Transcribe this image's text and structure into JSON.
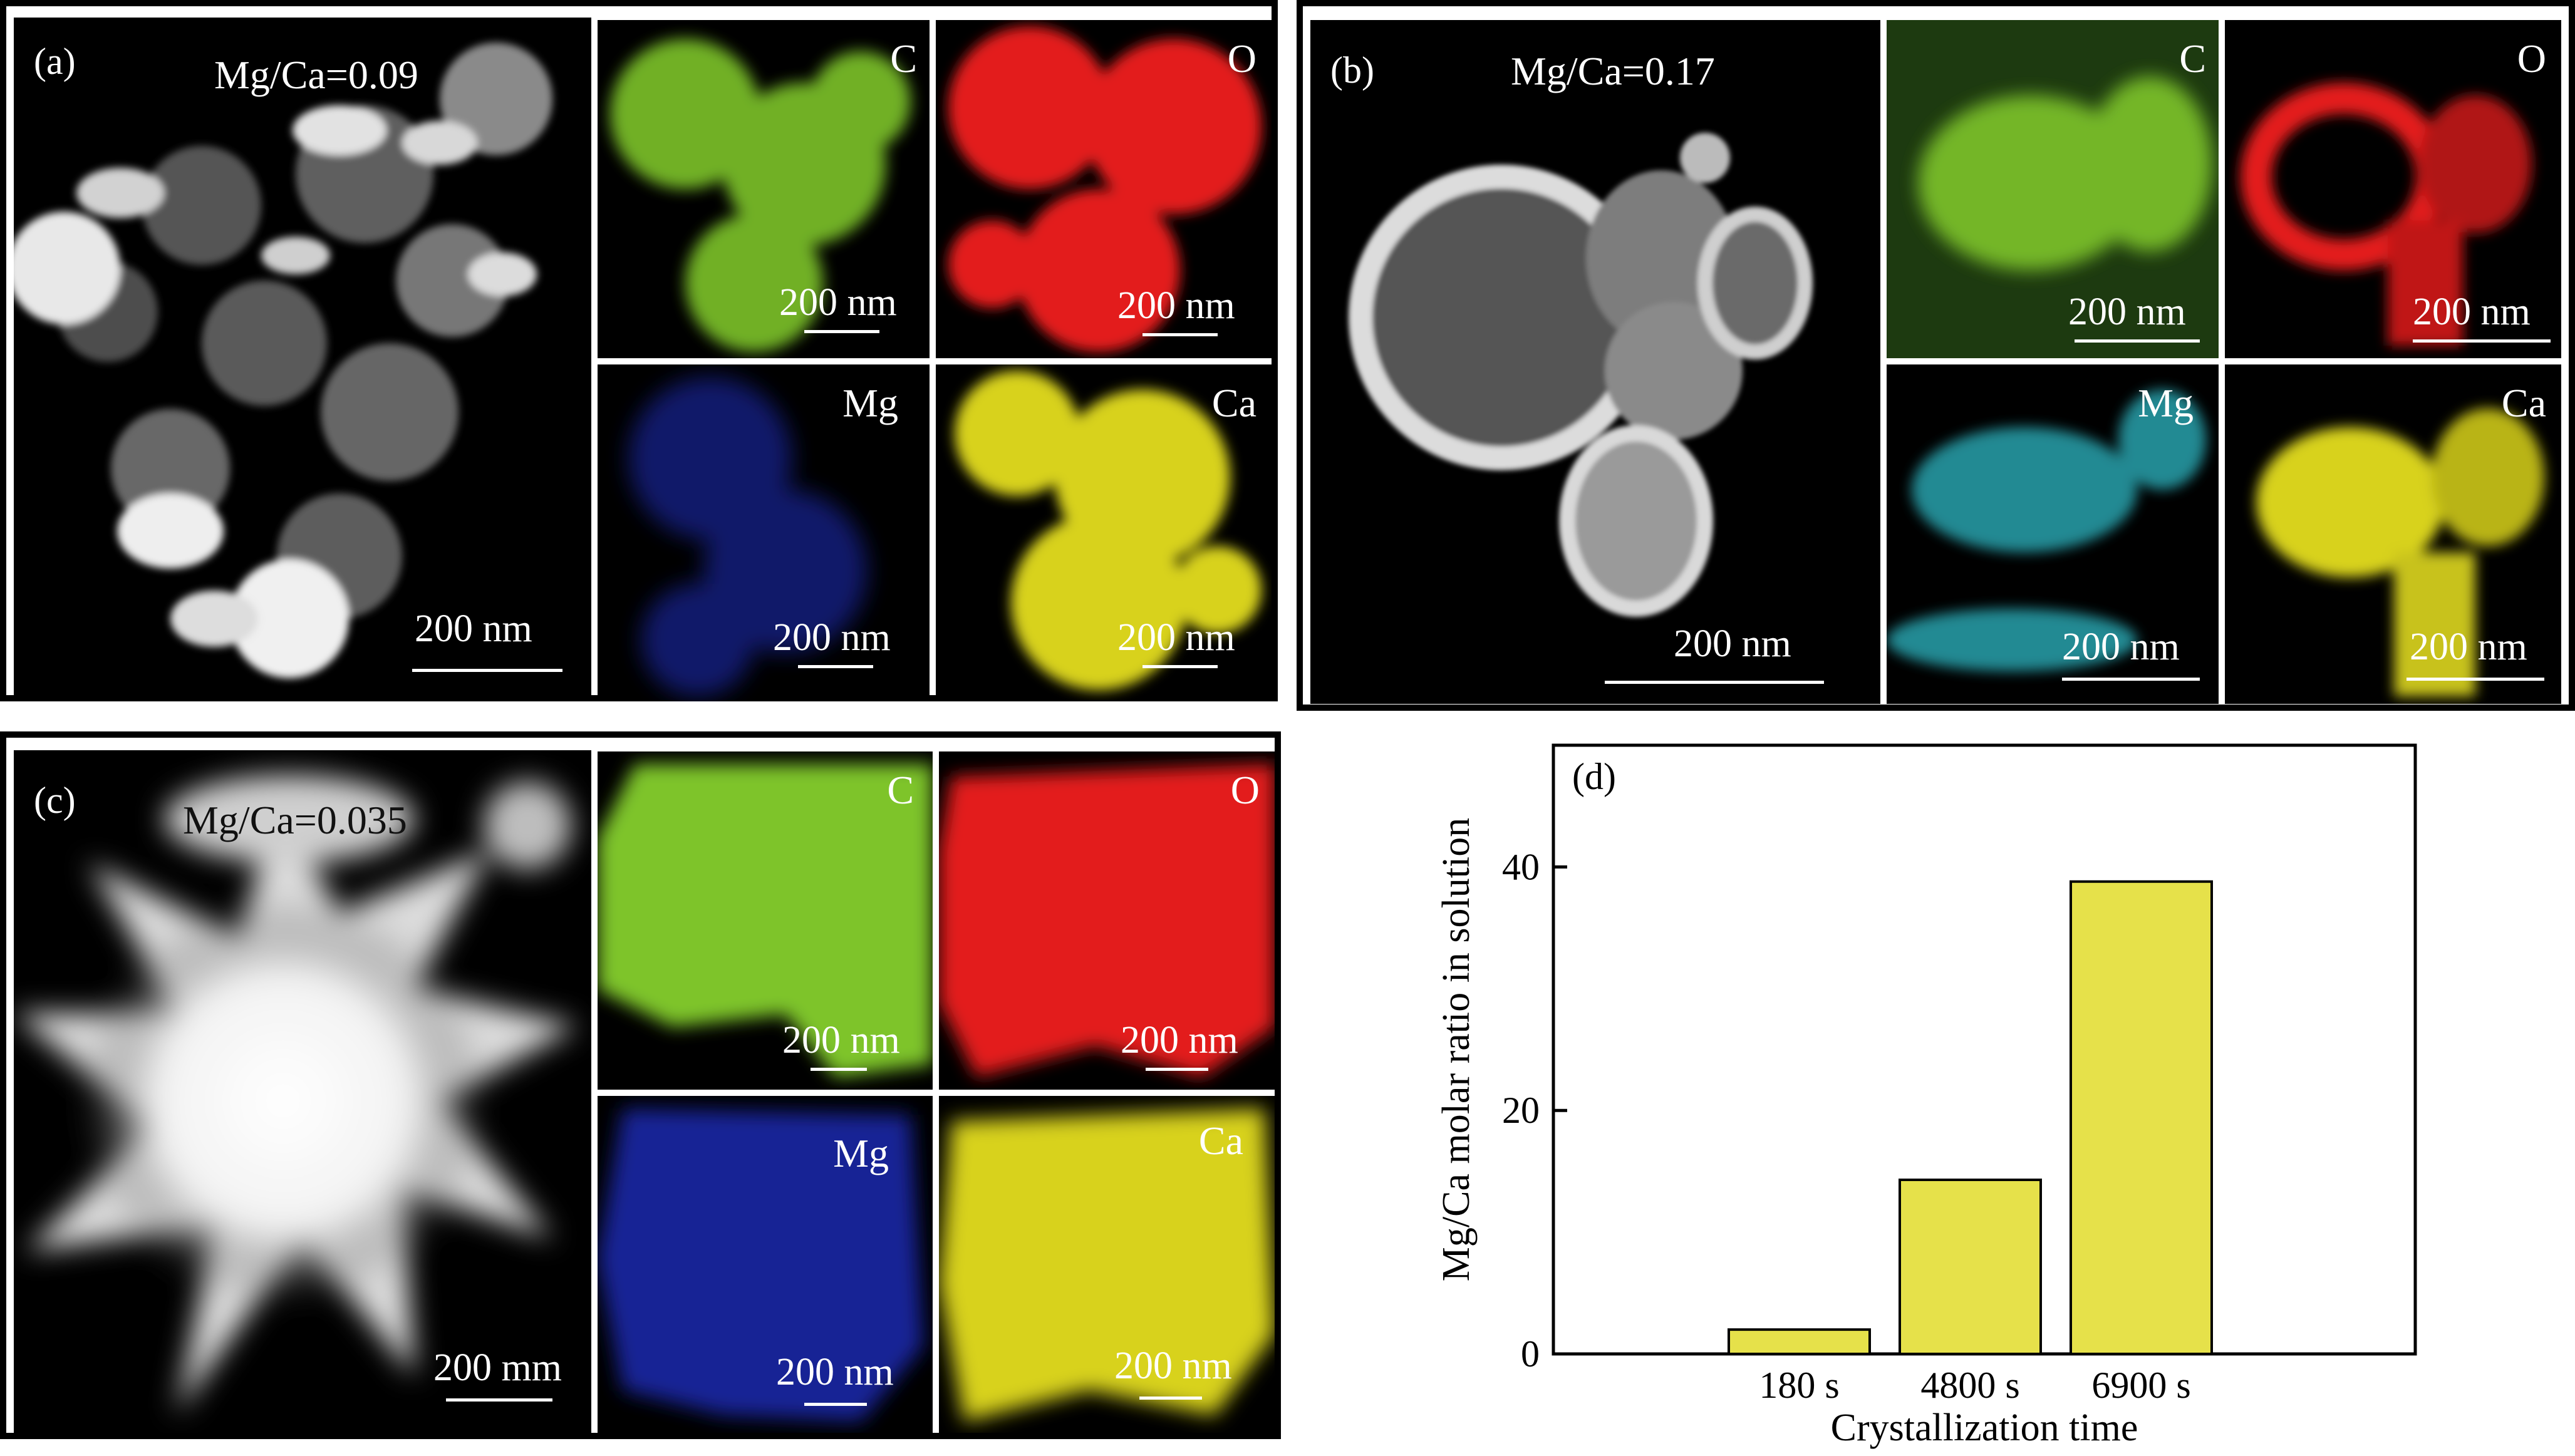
{
  "panels": [
    {
      "label": "(a)",
      "ratio_label": "Mg/Ca=0.09",
      "main_scale": "200 nm",
      "maps": [
        {
          "element": "C",
          "scale": "200 nm",
          "color": "#7ec42a"
        },
        {
          "element": "O",
          "scale": "200 nm",
          "color": "#e31b1b"
        },
        {
          "element": "Mg",
          "scale": "200 nm",
          "color": "#1c2ab0"
        },
        {
          "element": "Ca",
          "scale": "200 nm",
          "color": "#d8d21c"
        }
      ]
    },
    {
      "label": "(b)",
      "ratio_label": "Mg/Ca=0.17",
      "main_scale": "200 nm",
      "maps": [
        {
          "element": "C",
          "scale": "200 nm",
          "color": "#7ec42a"
        },
        {
          "element": "O",
          "scale": "200 nm",
          "color": "#e31b1b"
        },
        {
          "element": "Mg",
          "scale": "200 nm",
          "color": "#2fb8c4"
        },
        {
          "element": "Ca",
          "scale": "200 nm",
          "color": "#d8d21c"
        }
      ]
    },
    {
      "label": "(c)",
      "ratio_label": "Mg/Ca=0.035",
      "main_scale": "200 mm",
      "maps": [
        {
          "element": "C",
          "scale": "200 nm",
          "color": "#7ec42a"
        },
        {
          "element": "O",
          "scale": "200 nm",
          "color": "#e31b1b"
        },
        {
          "element": "Mg",
          "scale": "200 nm",
          "color": "#1c2ab0"
        },
        {
          "element": "Ca",
          "scale": "200 nm",
          "color": "#d8d21c"
        }
      ]
    }
  ],
  "chart_data": {
    "type": "bar",
    "panel_label": "(d)",
    "categories": [
      "180 s",
      "4800 s",
      "6900 s"
    ],
    "values": [
      2,
      14.3,
      38.8
    ],
    "xlabel": "Crystallization time",
    "ylabel": "Mg/Ca molar ratio in solution",
    "ylim": [
      0,
      50
    ],
    "yticks": [
      0,
      20,
      40
    ],
    "bar_color": "#e6e14a",
    "grid": false
  }
}
